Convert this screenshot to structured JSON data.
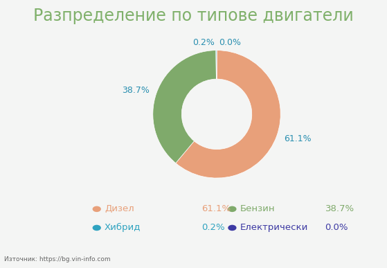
{
  "chart_data": {
    "type": "pie",
    "title": "Разпределение по типове двигатели",
    "categories": [
      "Дизел",
      "Бензин",
      "Хибрид",
      "Електрически"
    ],
    "values": [
      61.1,
      38.7,
      0.2,
      0.0
    ],
    "value_labels": [
      "61.1%",
      "38.7%",
      "0.2%",
      "0.0%"
    ],
    "colors": [
      "#e8a07a",
      "#7faa6b",
      "#2fa3c0",
      "#3d3aa3"
    ],
    "data_labels": true,
    "legend": "lower center",
    "source": "Източник: https://bg.vin-info.com"
  }
}
